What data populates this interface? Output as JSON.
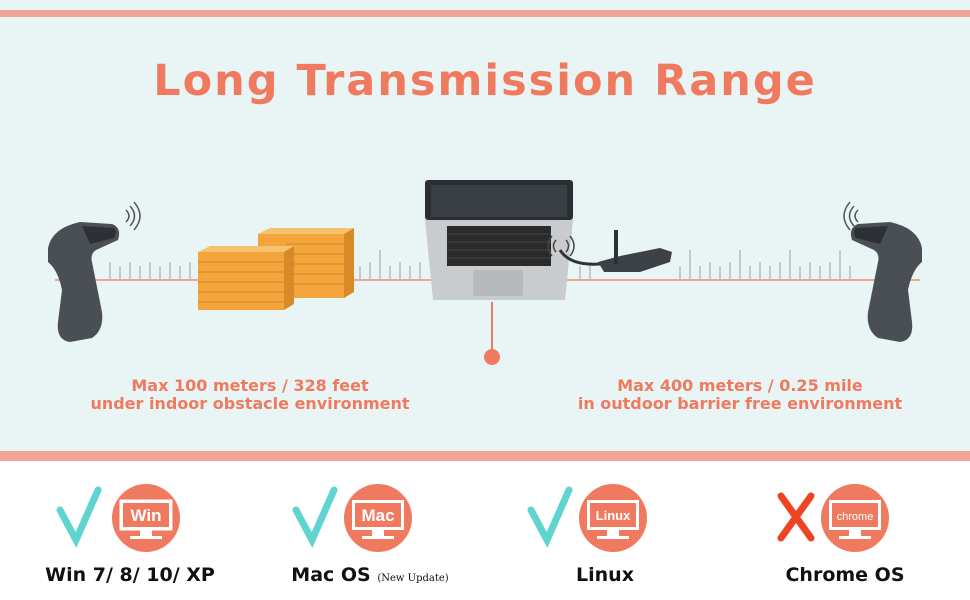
{
  "title": "Long Transmission Range",
  "indoor": {
    "line1": "Max 100 meters / 328 feet",
    "line2": "under indoor obstacle environment"
  },
  "outdoor": {
    "line1": "Max 400 meters / 0.25 mile",
    "line2": "in outdoor barrier free environment"
  },
  "os_support": [
    {
      "badge": "Win",
      "label": "Win 7/ 8/ 10/ XP",
      "note": "",
      "supported": true
    },
    {
      "badge": "Mac",
      "label": "Mac OS",
      "note": "(New Update)",
      "supported": true
    },
    {
      "badge": "Linux",
      "label": "Linux",
      "note": "",
      "supported": true
    },
    {
      "badge": "chrome",
      "label": "Chrome OS",
      "note": "",
      "supported": false
    }
  ],
  "colors": {
    "accent": "#f07a60",
    "check": "#5fd4d0",
    "cross": "#ee4422",
    "background": "#e8f5f4"
  }
}
